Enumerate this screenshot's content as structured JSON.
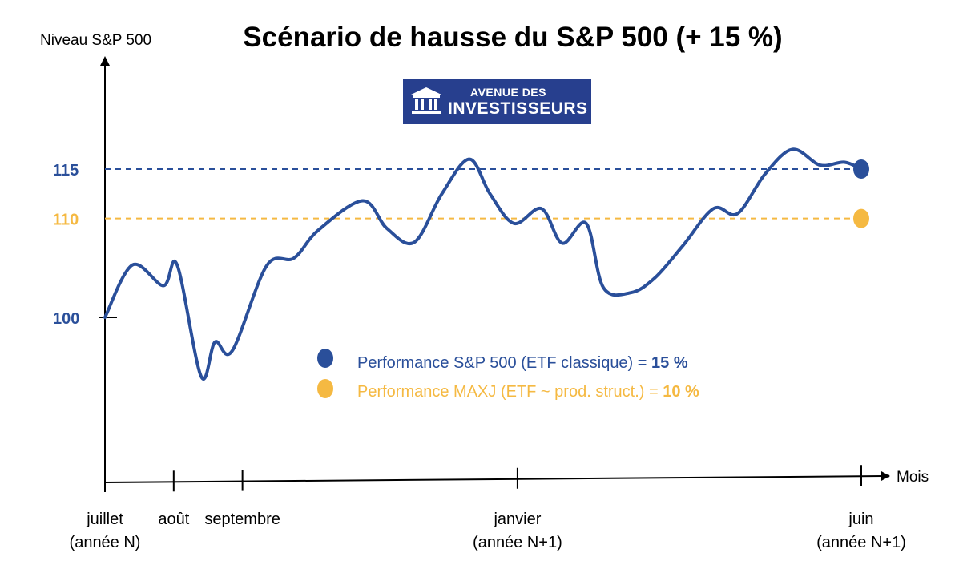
{
  "chart_data": {
    "type": "line",
    "title": "Scénario de hausse du S&P 500 (+ 15 %)",
    "ylabel": "Niveau S&P 500",
    "xlabel": "Mois",
    "y_ticks": [
      "100",
      "110",
      "115"
    ],
    "y_tick_values": [
      100,
      110,
      115
    ],
    "x_ticks": [
      {
        "month": 0,
        "line1": "juillet",
        "line2": "(année N)"
      },
      {
        "month": 1,
        "line1": "août",
        "line2": ""
      },
      {
        "month": 2,
        "line1": "septembre",
        "line2": ""
      },
      {
        "month": 6,
        "line1": "janvier",
        "line2": "(année N+1)"
      },
      {
        "month": 11,
        "line1": "juin",
        "line2": "(année N+1)"
      }
    ],
    "series": [
      {
        "name": "Performance S&P 500 (ETF classique)",
        "color": "#2a4f9a",
        "x": [
          0,
          0.4,
          0.85,
          1.05,
          1.4,
          1.6,
          1.85,
          2.35,
          2.75,
          3.1,
          3.75,
          4.1,
          4.5,
          4.9,
          5.3,
          5.6,
          5.95,
          6.35,
          6.65,
          7.0,
          7.25,
          7.65,
          8.0,
          8.4,
          8.85,
          9.2,
          9.6,
          10.0,
          10.4,
          10.75,
          11.0
        ],
        "y": [
          100,
          105.3,
          103.2,
          105.3,
          94.0,
          97.5,
          96.6,
          105.2,
          106.0,
          108.8,
          111.8,
          109.0,
          107.6,
          112.5,
          116.0,
          112.5,
          109.5,
          111.0,
          107.5,
          109.5,
          103.0,
          102.5,
          104.0,
          107.2,
          111.0,
          110.5,
          114.5,
          117.0,
          115.4,
          115.7,
          115.0
        ]
      },
      {
        "name": "Performance MAXJ (ETF ~ prod. struct.)",
        "color": "#f5b942",
        "x": [
          11
        ],
        "y": [
          110
        ]
      }
    ],
    "reference_lines": [
      {
        "y": 115,
        "color": "#2a4f9a"
      },
      {
        "y": 110,
        "color": "#f5b942"
      }
    ],
    "end_markers": [
      {
        "x": 11,
        "y": 115,
        "color": "#2a4f9a"
      },
      {
        "x": 11,
        "y": 110,
        "color": "#f5b942"
      }
    ],
    "legend": [
      {
        "label": "Performance S&P 500 (ETF classique) = ",
        "value": "15 %",
        "color": "#2a4f9a"
      },
      {
        "label": "Performance MAXJ (ETF ~ prod. struct.) = ",
        "value": "10 %",
        "color": "#f5b942"
      }
    ],
    "grid": false
  },
  "logo": {
    "line1": "AVENUE DES",
    "line2": "INVESTISSEURS"
  }
}
